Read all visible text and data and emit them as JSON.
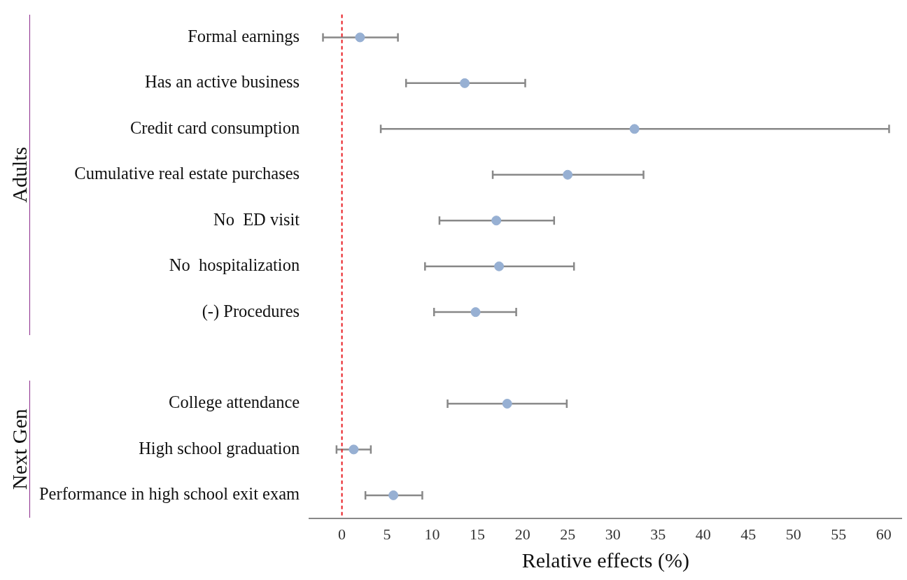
{
  "chart_data": {
    "type": "scatter",
    "orientation": "horizontal",
    "xlabel": "Relative effects (%)",
    "categories": [
      "Formal earnings",
      "Has an active business",
      "Credit card consumption",
      "Cumulative real estate purchases",
      "No  ED visit",
      "No  hospitalization",
      "(-) Procedures",
      null,
      "College attendance",
      "High school graduation",
      "Performance in high school exit exam"
    ],
    "values": [
      2.0,
      13.6,
      32.4,
      25.0,
      17.1,
      17.4,
      14.8,
      null,
      18.3,
      1.3,
      5.7
    ],
    "errors": [
      [
        -2.1,
        6.2
      ],
      [
        7.1,
        20.3
      ],
      [
        4.3,
        60.6
      ],
      [
        16.7,
        33.4
      ],
      [
        10.8,
        23.5
      ],
      [
        9.2,
        25.7
      ],
      [
        10.2,
        19.3
      ],
      null,
      [
        11.7,
        24.9
      ],
      [
        -0.6,
        3.2
      ],
      [
        2.6,
        8.9
      ]
    ],
    "color": "#97b0d3",
    "marker": "circle",
    "grid": false,
    "legend": false,
    "xlim": [
      -3.6,
      62
    ],
    "xticks": [
      0,
      5,
      10,
      15,
      20,
      25,
      30,
      35,
      40,
      45,
      50,
      55,
      60
    ],
    "ref_lines": [
      {
        "axis": "x",
        "value": 0,
        "color": "#e8191f",
        "line_style": "dashed"
      }
    ],
    "annotations": [
      "Adults",
      "Next Gen"
    ]
  }
}
